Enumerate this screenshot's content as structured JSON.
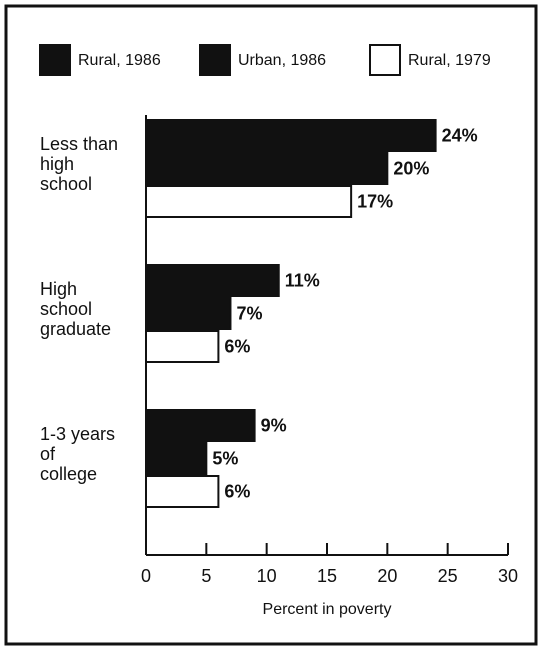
{
  "chart_data": {
    "type": "bar",
    "orientation": "horizontal",
    "categories": [
      "Less than\nhigh\nschool",
      "High\nschool\ngraduate",
      "1-3 years\nof\ncollege"
    ],
    "series": [
      {
        "name": "Rural, 1986",
        "color": "#111111",
        "values": [
          24,
          11,
          9
        ],
        "value_labels": [
          "24%",
          "11%",
          "9%"
        ]
      },
      {
        "name": "Urban, 1986",
        "color": "#111111",
        "values": [
          20,
          7,
          5
        ],
        "value_labels": [
          "20%",
          "7%",
          "5%"
        ]
      },
      {
        "name": "Rural, 1979",
        "color": "#ffffff",
        "values": [
          17,
          6,
          6
        ],
        "value_labels": [
          "17%",
          "6%",
          "6%"
        ]
      }
    ],
    "xlabel": "Percent in poverty",
    "xlim": [
      0,
      30
    ],
    "xticks": [
      0,
      5,
      10,
      15,
      20,
      25,
      30
    ]
  }
}
